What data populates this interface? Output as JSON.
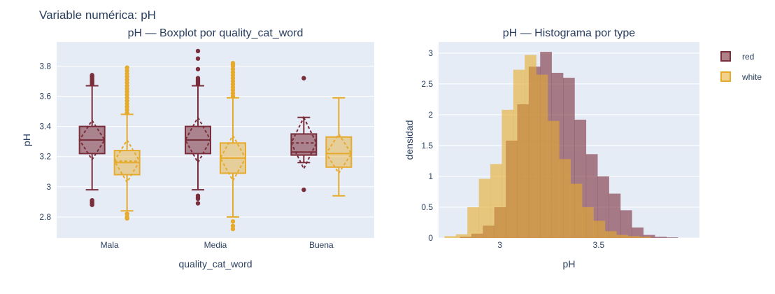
{
  "figure": {
    "title": "Variable numérica: pH",
    "colors": {
      "red": "#7a2d3a",
      "white": "#e6ab2d",
      "plot_bg": "#e5ecf6",
      "grid": "#ffffff",
      "text": "#2a3f5f"
    }
  },
  "legend": [
    {
      "name": "red",
      "color": "#7a2d3a"
    },
    {
      "name": "white",
      "color": "#e6ab2d"
    }
  ],
  "chart_data": [
    {
      "type": "box",
      "title": "pH — Boxplot por quality_cat_word",
      "xlabel": "quality_cat_word",
      "ylabel": "pH",
      "categories": [
        "Mala",
        "Media",
        "Buena"
      ],
      "ylim": [
        2.66,
        3.96
      ],
      "yticks": [
        2.8,
        3,
        3.2,
        3.4,
        3.6,
        3.8
      ],
      "ytick_labels": [
        "2.8",
        "3",
        "3.2",
        "3.4",
        "3.6",
        "3.8"
      ],
      "boxmean": "sd",
      "series": [
        {
          "name": "red",
          "boxes": [
            {
              "category": "Mala",
              "q1": 3.22,
              "median": 3.31,
              "q3": 3.4,
              "lower": 2.98,
              "upper": 3.67,
              "mean": 3.31,
              "sd": 0.13,
              "outliers": [
                2.88,
                2.89,
                2.9,
                2.91,
                3.68,
                3.69,
                3.7,
                3.71,
                3.72,
                3.73,
                3.74
              ]
            },
            {
              "category": "Media",
              "q1": 3.22,
              "median": 3.31,
              "q3": 3.4,
              "lower": 2.98,
              "upper": 3.67,
              "mean": 3.31,
              "sd": 0.15,
              "outliers": [
                2.89,
                2.92,
                2.93,
                2.94,
                3.68,
                3.69,
                3.7,
                3.71,
                3.72,
                3.78,
                3.85,
                3.9
              ]
            },
            {
              "category": "Buena",
              "q1": 3.21,
              "median": 3.23,
              "q3": 3.35,
              "lower": 3.16,
              "upper": 3.46,
              "mean": 3.29,
              "sd": 0.17,
              "outliers": [
                2.98,
                3.72
              ]
            }
          ]
        },
        {
          "name": "white",
          "boxes": [
            {
              "category": "Mala",
              "q1": 3.08,
              "median": 3.16,
              "q3": 3.24,
              "lower": 2.84,
              "upper": 3.48,
              "mean": 3.17,
              "sd": 0.14,
              "outliers": [
                2.79,
                2.8,
                2.82,
                3.49,
                3.51,
                3.53,
                3.55,
                3.57,
                3.59,
                3.61,
                3.63,
                3.65,
                3.67,
                3.69,
                3.71,
                3.73,
                3.75,
                3.77,
                3.79
              ]
            },
            {
              "category": "Media",
              "q1": 3.09,
              "median": 3.19,
              "q3": 3.29,
              "lower": 2.8,
              "upper": 3.59,
              "mean": 3.19,
              "sd": 0.15,
              "outliers": [
                2.72,
                2.74,
                2.77,
                3.6,
                3.62,
                3.64,
                3.66,
                3.68,
                3.7,
                3.72,
                3.74,
                3.76,
                3.78,
                3.8,
                3.81,
                3.82
              ]
            },
            {
              "category": "Buena",
              "q1": 3.13,
              "median": 3.22,
              "q3": 3.33,
              "lower": 2.94,
              "upper": 3.59,
              "mean": 3.22,
              "sd": 0.13,
              "outliers": []
            }
          ]
        }
      ]
    },
    {
      "type": "histogram",
      "title": "pH — Histograma por type",
      "xlabel": "pH",
      "ylabel": "densidad",
      "xlim": [
        2.69,
        4.01
      ],
      "ylim": [
        0,
        3.18
      ],
      "xticks": [
        3,
        3.5
      ],
      "xtick_labels": [
        "3",
        "3.5"
      ],
      "yticks": [
        0,
        0.5,
        1,
        1.5,
        2,
        2.5,
        3
      ],
      "ytick_labels": [
        "0",
        "0.5",
        "1",
        "1.5",
        "2",
        "2.5",
        "3"
      ],
      "barmode": "overlay",
      "bin_width": 0.058,
      "series": [
        {
          "name": "red",
          "bin_start": 2.74,
          "values": [
            0,
            0.02,
            0.07,
            0.2,
            0.5,
            1.58,
            2.17,
            2.78,
            3.02,
            2.68,
            2.6,
            1.92,
            1.36,
            1.0,
            0.72,
            0.45,
            0.17,
            0.05,
            0.02,
            0.01
          ]
        },
        {
          "name": "white",
          "bin_start": 2.72,
          "values": [
            0.03,
            0.06,
            0.5,
            0.96,
            1.2,
            2.08,
            2.73,
            2.97,
            2.65,
            1.9,
            1.28,
            0.88,
            0.5,
            0.28,
            0.11,
            0.05,
            0.03,
            0.02
          ]
        }
      ]
    }
  ]
}
